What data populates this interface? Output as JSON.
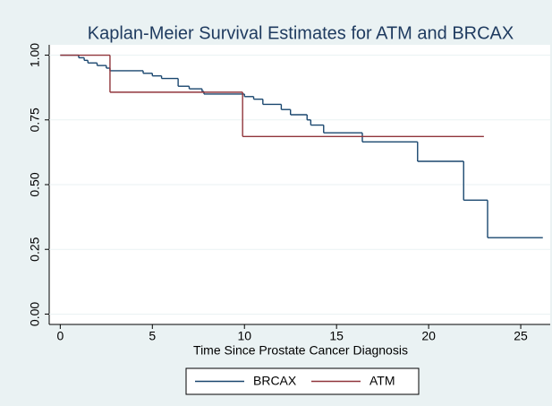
{
  "chart_data": {
    "type": "step",
    "title": "Kaplan-Meier Survival  Estimates for ATM and BRCAX",
    "x_label": "Time Since Prostate Cancer Diagnosis",
    "xlim": [
      -0.6,
      26.6
    ],
    "xticks": [
      0,
      5,
      10,
      15,
      20,
      25
    ],
    "ylim": [
      -0.04,
      1.04
    ],
    "yticks": [
      {
        "value": 0,
        "label": "0.00"
      },
      {
        "value": 0.25,
        "label": "0.25"
      },
      {
        "value": 0.5,
        "label": "0.50"
      },
      {
        "value": 0.75,
        "label": "0.75"
      },
      {
        "value": 1,
        "label": "1.00"
      }
    ],
    "grid": true,
    "series": [
      {
        "name": "BRCAX",
        "color": "#1a476f",
        "x": [
          0,
          1.0,
          1.3,
          1.5,
          2.0,
          2.5,
          2.7,
          4.5,
          5.0,
          5.5,
          6.4,
          7.0,
          7.7,
          7.8,
          10.0,
          10.5,
          11.0,
          12.0,
          12.5,
          13.4,
          13.6,
          14.3,
          16.4,
          19.4,
          21.9,
          23.2,
          26.2
        ],
        "values": [
          1.0,
          0.99,
          0.98,
          0.97,
          0.96,
          0.95,
          0.94,
          0.93,
          0.92,
          0.91,
          0.88,
          0.87,
          0.86,
          0.85,
          0.84,
          0.83,
          0.81,
          0.79,
          0.77,
          0.75,
          0.73,
          0.7,
          0.665,
          0.59,
          0.44,
          0.295,
          0.295
        ]
      },
      {
        "name": "ATM",
        "color": "#90353b",
        "x": [
          0,
          2.7,
          9.9,
          23.0
        ],
        "values": [
          1.0,
          0.857,
          0.686,
          0.686
        ]
      }
    ]
  }
}
